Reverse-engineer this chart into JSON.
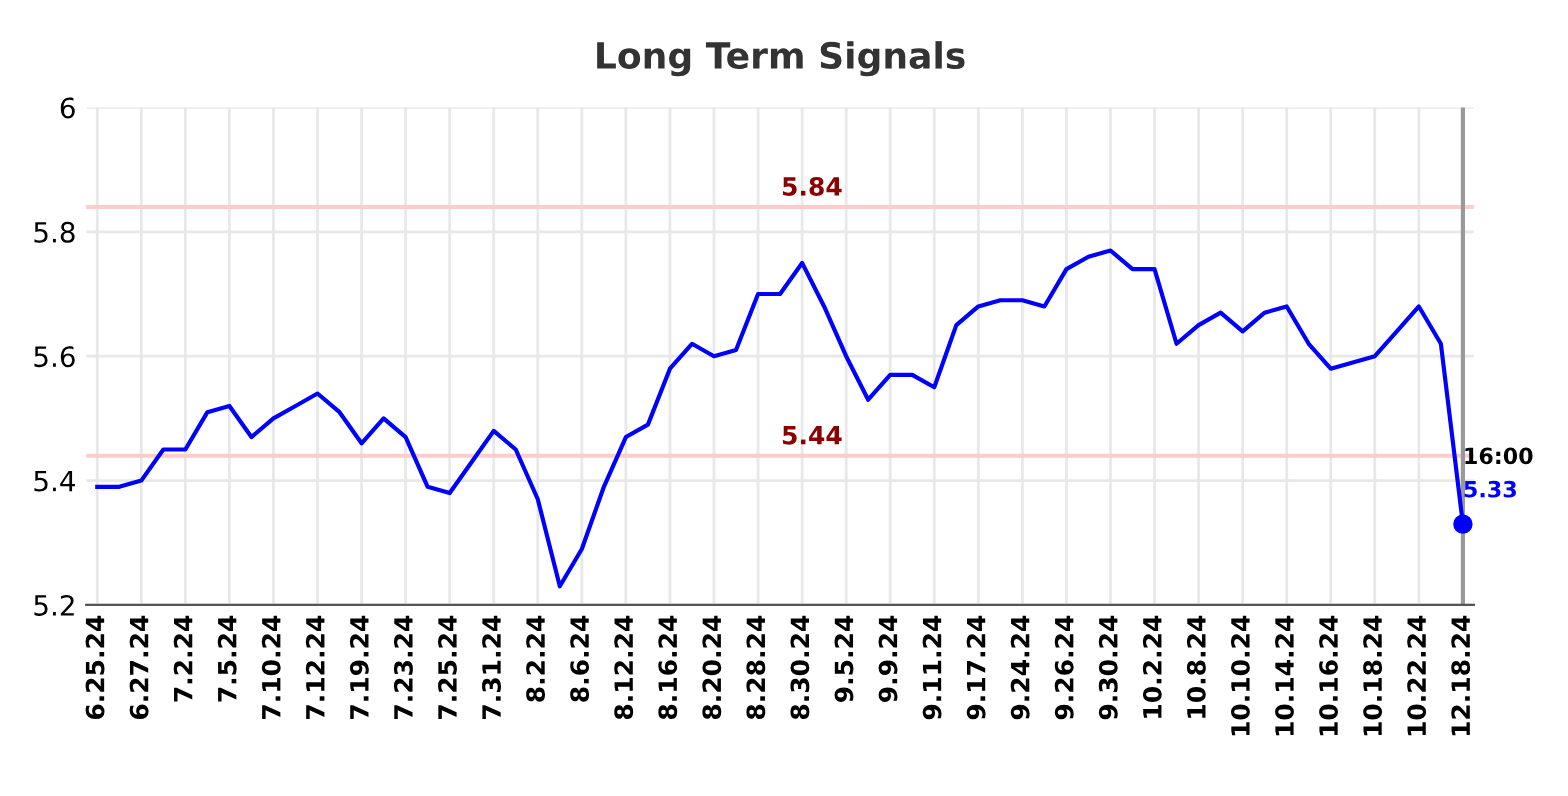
{
  "chart_data": {
    "type": "line",
    "title": "Long Term Signals",
    "categories": [
      "6.25.24",
      null,
      "6.27.24",
      null,
      "7.2.24",
      null,
      "7.5.24",
      null,
      "7.10.24",
      null,
      "7.12.24",
      null,
      "7.19.24",
      null,
      "7.23.24",
      null,
      "7.25.24",
      null,
      "7.31.24",
      null,
      "8.2.24",
      null,
      "8.6.24",
      null,
      "8.12.24",
      null,
      "8.16.24",
      null,
      "8.20.24",
      null,
      "8.28.24",
      null,
      "8.30.24",
      null,
      "9.5.24",
      null,
      "9.9.24",
      null,
      "9.11.24",
      null,
      "9.17.24",
      null,
      "9.24.24",
      null,
      "9.26.24",
      null,
      "9.30.24",
      null,
      "10.2.24",
      null,
      "10.8.24",
      null,
      "10.10.24",
      null,
      "10.14.24",
      null,
      "10.16.24",
      null,
      "10.18.24",
      null,
      "10.22.24",
      null,
      "12.18.24"
    ],
    "series": [
      {
        "color": "#0000ff",
        "marker": "none",
        "values": [
          5.39,
          5.39,
          5.4,
          5.45,
          5.45,
          5.51,
          5.52,
          5.47,
          5.5,
          5.52,
          5.54,
          5.51,
          5.46,
          5.5,
          5.47,
          5.39,
          5.38,
          5.43,
          5.48,
          5.45,
          5.37,
          5.23,
          5.29,
          5.39,
          5.47,
          5.49,
          5.58,
          5.62,
          5.6,
          5.61,
          5.7,
          5.7,
          5.75,
          5.68,
          5.6,
          5.53,
          5.57,
          5.57,
          5.55,
          5.65,
          5.68,
          5.69,
          5.69,
          5.68,
          5.74,
          5.76,
          5.77,
          5.74,
          5.74,
          5.62,
          5.65,
          5.67,
          5.64,
          5.67,
          5.68,
          5.62,
          5.58,
          5.59,
          5.6,
          5.64,
          5.68,
          5.62,
          5.33
        ]
      },
      {
        "type": "scatter",
        "marker": "circle",
        "color": "#0000ff",
        "x": [
          "12.18.24"
        ],
        "values": [
          5.33
        ],
        "value_labels": [
          "5.33"
        ]
      }
    ],
    "ylim": [
      5.2,
      6
    ],
    "yticks": [
      5.2,
      5.4,
      5.6,
      5.8,
      6
    ],
    "grid": true,
    "legend": false,
    "line_style": "solid",
    "ref_lines": [
      {
        "axis": "y",
        "value": 5.84,
        "label": "5.84",
        "color": "#ffcccc"
      },
      {
        "axis": "y",
        "value": 5.44,
        "label": "5.44",
        "color": "#ffcccc"
      },
      {
        "axis": "x",
        "value": "12.18.24",
        "label": null,
        "color": "#999999"
      }
    ],
    "annotations": [
      {
        "text": "16:00",
        "x": "12.18.24",
        "y": 5.33
      }
    ]
  }
}
